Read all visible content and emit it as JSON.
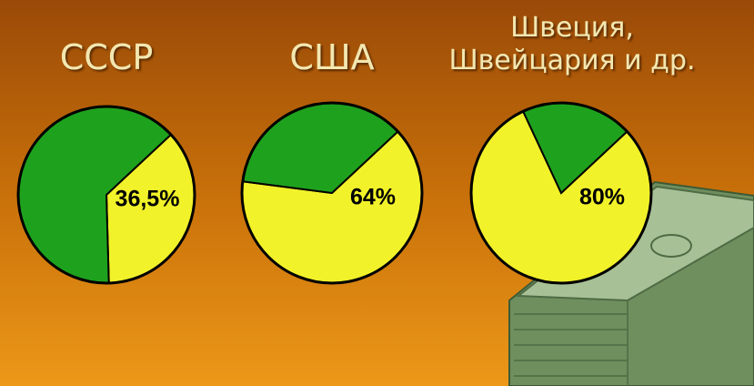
{
  "chart_data": [
    {
      "type": "pie",
      "title": [
        "СССР"
      ],
      "values": [
        36.5,
        63.5
      ],
      "value_labels": [
        "36,5%",
        null
      ],
      "colors": [
        "#f2f22a",
        "#1ea21e"
      ]
    },
    {
      "type": "pie",
      "title": [
        "США"
      ],
      "values": [
        64,
        36
      ],
      "value_labels": [
        "64%",
        null
      ],
      "colors": [
        "#f2f22a",
        "#1ea21e"
      ]
    },
    {
      "type": "pie",
      "title": [
        "Швеция,",
        "Швейцария и др."
      ],
      "values": [
        80,
        20
      ],
      "value_labels": [
        "80%",
        null
      ],
      "colors": [
        "#f2f22a",
        "#1ea21e"
      ]
    }
  ]
}
